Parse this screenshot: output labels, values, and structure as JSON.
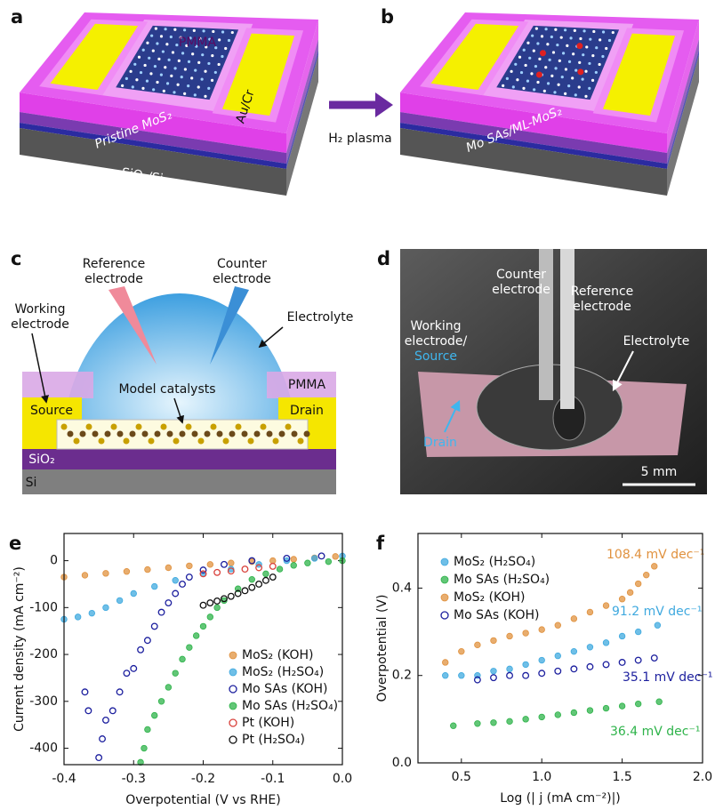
{
  "panels": {
    "a": {
      "label": "a",
      "pmma": "PMMA",
      "film": "Pristine MoS₂",
      "electrode": "Au/Cr",
      "substrate": "SiO₂/Si"
    },
    "b": {
      "label": "b",
      "film": "Mo SAs/ML-MoS₂",
      "arrow": "H₂ plasma"
    },
    "c": {
      "label": "c",
      "reference": [
        "Reference",
        "electrode"
      ],
      "counter": [
        "Counter",
        "electrode"
      ],
      "working": [
        "Working",
        "electrode"
      ],
      "electrolyte": "Electrolyte",
      "pmma": "PMMA",
      "catalyst": "Model catalysts",
      "source": "Source",
      "drain": "Drain",
      "sio2": "SiO₂",
      "si": "Si"
    },
    "d": {
      "label": "d",
      "counter": [
        "Counter",
        "electrode"
      ],
      "reference": [
        "Reference",
        "electrode"
      ],
      "working": [
        "Working",
        "electrode/"
      ],
      "source": "Source",
      "electrolyte": "Electrolyte",
      "drain": "Drain",
      "scale": "5 mm"
    }
  },
  "chart_data": [
    {
      "type": "scatter",
      "panel_label": "e",
      "xlabel": "Overpotential (V vs RHE)",
      "ylabel": "Current density (mA cm⁻²)",
      "xlim": [
        -0.4,
        0.0
      ],
      "xticks": [
        -0.4,
        -0.3,
        -0.2,
        -0.1,
        {
          "value": 0,
          "label": "0.0"
        }
      ],
      "ylim": [
        -435,
        58
      ],
      "yticks": [
        0,
        -100,
        -200,
        -300,
        -400
      ],
      "series": [
        {
          "name": "MoS₂ (KOH)",
          "color": "#e0913e",
          "marker": "filled",
          "x": [
            -0.4,
            -0.37,
            -0.34,
            -0.31,
            -0.28,
            -0.25,
            -0.22,
            -0.19,
            -0.16,
            -0.13,
            -0.1,
            -0.07,
            -0.04,
            -0.01
          ],
          "values": [
            -35,
            -31,
            -27,
            -23,
            -19,
            -15,
            -11,
            -8,
            -5,
            -2,
            0,
            3,
            6,
            9
          ]
        },
        {
          "name": "MoS₂ (H₂SO₄)",
          "color": "#3fa9df",
          "marker": "filled",
          "x": [
            -0.4,
            -0.38,
            -0.36,
            -0.34,
            -0.32,
            -0.3,
            -0.27,
            -0.24,
            -0.2,
            -0.16,
            -0.12,
            -0.08,
            -0.04,
            0
          ],
          "values": [
            -125,
            -120,
            -112,
            -100,
            -85,
            -70,
            -55,
            -42,
            -28,
            -18,
            -8,
            0,
            5,
            10
          ]
        },
        {
          "name": "Mo SAs (KOH)",
          "color": "#1c1f9e",
          "marker": "open",
          "x": [
            -0.37,
            -0.365,
            -0.35,
            -0.345,
            -0.34,
            -0.33,
            -0.32,
            -0.31,
            -0.3,
            -0.29,
            -0.28,
            -0.27,
            -0.26,
            -0.25,
            -0.24,
            -0.23,
            -0.22,
            -0.2,
            -0.17,
            -0.13,
            -0.08,
            -0.03
          ],
          "values": [
            -280,
            -320,
            -420,
            -380,
            -340,
            -320,
            -280,
            -240,
            -230,
            -190,
            -170,
            -140,
            -110,
            -90,
            -70,
            -50,
            -35,
            -20,
            -8,
            0,
            5,
            10
          ]
        },
        {
          "name": "Mo SAs (H₂SO₄)",
          "color": "#2eb34a",
          "marker": "filled",
          "x": [
            -0.29,
            -0.285,
            -0.28,
            -0.27,
            -0.26,
            -0.25,
            -0.24,
            -0.23,
            -0.22,
            -0.21,
            -0.2,
            -0.19,
            -0.18,
            -0.17,
            -0.15,
            -0.13,
            -0.11,
            -0.09,
            -0.07,
            -0.05,
            -0.02,
            0
          ],
          "values": [
            -430,
            -400,
            -360,
            -330,
            -300,
            -270,
            -240,
            -210,
            -185,
            -160,
            -140,
            -120,
            -100,
            -85,
            -60,
            -40,
            -28,
            -18,
            -10,
            -5,
            -2,
            0
          ]
        },
        {
          "name": "Pt (KOH)",
          "color": "#d9413b",
          "marker": "open",
          "x": [
            -0.2,
            -0.18,
            -0.16,
            -0.14,
            -0.12,
            -0.1
          ],
          "values": [
            -28,
            -25,
            -22,
            -18,
            -15,
            -12
          ]
        },
        {
          "name": "Pt (H₂SO₄)",
          "color": "#111111",
          "marker": "open",
          "x": [
            -0.2,
            -0.19,
            -0.18,
            -0.17,
            -0.16,
            -0.15,
            -0.14,
            -0.13,
            -0.12,
            -0.11,
            -0.1
          ],
          "values": [
            -95,
            -90,
            -86,
            -81,
            -76,
            -70,
            -64,
            -57,
            -50,
            -42,
            -35
          ]
        }
      ]
    },
    {
      "type": "scatter",
      "panel_label": "f",
      "xlabel": "Log (| j (mA cm⁻²)|)",
      "ylabel": "Overpotential (V)",
      "xlim": [
        0.23,
        2.0
      ],
      "xticks": [
        0.5,
        {
          "value": 1,
          "label": "1.0"
        },
        1.5,
        {
          "value": 2,
          "label": "2.0"
        }
      ],
      "ylim": [
        0,
        0.525
      ],
      "yticks": [
        {
          "value": 0,
          "label": "0.0"
        },
        0.2,
        0.4
      ],
      "series": [
        {
          "name": "MoS₂ (H₂SO₄)",
          "color": "#3fa9df",
          "marker": "filled",
          "x": [
            0.4,
            0.5,
            0.6,
            0.7,
            0.8,
            0.9,
            1.0,
            1.1,
            1.2,
            1.3,
            1.4,
            1.5,
            1.6,
            1.72
          ],
          "values": [
            0.2,
            0.2,
            0.2,
            0.21,
            0.215,
            0.225,
            0.235,
            0.245,
            0.255,
            0.265,
            0.275,
            0.29,
            0.3,
            0.315
          ]
        },
        {
          "name": "Mo SAs (H₂SO₄)",
          "color": "#2eb34a",
          "marker": "filled",
          "x": [
            0.45,
            0.6,
            0.7,
            0.8,
            0.9,
            1.0,
            1.1,
            1.2,
            1.3,
            1.4,
            1.5,
            1.6,
            1.73
          ],
          "values": [
            0.085,
            0.09,
            0.092,
            0.095,
            0.1,
            0.105,
            0.11,
            0.115,
            0.12,
            0.125,
            0.13,
            0.135,
            0.14
          ]
        },
        {
          "name": "MoS₂ (KOH)",
          "color": "#e0913e",
          "marker": "filled",
          "x": [
            0.4,
            0.5,
            0.6,
            0.7,
            0.8,
            0.9,
            1.0,
            1.1,
            1.2,
            1.3,
            1.4,
            1.5,
            1.55,
            1.6,
            1.65,
            1.7
          ],
          "values": [
            0.23,
            0.255,
            0.27,
            0.28,
            0.29,
            0.297,
            0.305,
            0.315,
            0.33,
            0.345,
            0.36,
            0.375,
            0.39,
            0.41,
            0.43,
            0.45
          ]
        },
        {
          "name": "Mo SAs (KOH)",
          "color": "#1c1f9e",
          "marker": "open",
          "x": [
            0.6,
            0.7,
            0.8,
            0.9,
            1.0,
            1.1,
            1.2,
            1.3,
            1.4,
            1.5,
            1.6,
            1.7
          ],
          "values": [
            0.19,
            0.195,
            0.2,
            0.2,
            0.205,
            0.21,
            0.215,
            0.22,
            0.225,
            0.23,
            0.235,
            0.24
          ]
        }
      ],
      "annotations": [
        {
          "text": "108.4 mV dec⁻¹",
          "color": "#e0913e"
        },
        {
          "text": "91.2 mV dec⁻¹",
          "color": "#3fa9df"
        },
        {
          "text": "35.1 mV dec⁻¹",
          "color": "#1c1f9e"
        },
        {
          "text": "36.4 mV dec⁻¹",
          "color": "#2eb34a"
        }
      ]
    }
  ]
}
